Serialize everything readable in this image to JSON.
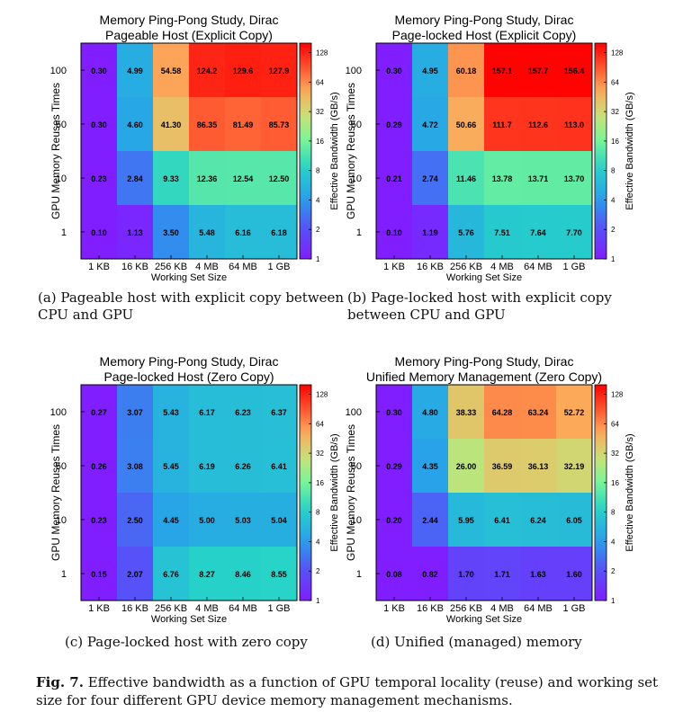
{
  "chart_data": [
    {
      "type": "heatmap",
      "title": "Memory Ping-Pong Study, Dirac",
      "subtitle": "Pageable Host (Explicit Copy)",
      "xlabel": "Working Set Size",
      "ylabel": "GPU Memory Reuses Times",
      "colorbar_label": "Effective Bandwidth (GB/s)",
      "x": [
        "1 KB",
        "16 KB",
        "256 KB",
        "4 MB",
        "64 MB",
        "1 GB"
      ],
      "y": [
        "100",
        "50",
        "10",
        "1"
      ],
      "values": [
        [
          "0.30",
          "4.99",
          "54.58",
          "124.2",
          "129.6",
          "127.9"
        ],
        [
          "0.30",
          "4.60",
          "41.30",
          "86.35",
          "81.49",
          "85.73"
        ],
        [
          "0.23",
          "2.84",
          "9.33",
          "12.36",
          "12.54",
          "12.50"
        ],
        [
          "0.10",
          "1.13",
          "3.50",
          "5.48",
          "6.16",
          "6.18"
        ]
      ],
      "colorbar_ticks": [
        "128",
        "64",
        "32",
        "16",
        "8",
        "4",
        "2",
        "1"
      ],
      "scale": "log2",
      "range": [
        1,
        160
      ],
      "caption": "(a) Pageable host with explicit copy between CPU and GPU"
    },
    {
      "type": "heatmap",
      "title": "Memory Ping-Pong Study, Dirac",
      "subtitle": "Page-locked Host (Explicit Copy)",
      "xlabel": "Working Set Size",
      "ylabel": "GPU Memory Reuses Times",
      "colorbar_label": "Effective Bandwidth (GB/s)",
      "x": [
        "1 KB",
        "16 KB",
        "256 KB",
        "4 MB",
        "64 MB",
        "1 GB"
      ],
      "y": [
        "100",
        "50",
        "10",
        "1"
      ],
      "values": [
        [
          "0.30",
          "4.95",
          "60.18",
          "157.1",
          "157.7",
          "156.4"
        ],
        [
          "0.29",
          "4.72",
          "50.66",
          "111.7",
          "112.6",
          "113.0"
        ],
        [
          "0.21",
          "2.74",
          "11.46",
          "13.78",
          "13.71",
          "13.70"
        ],
        [
          "0.10",
          "1.19",
          "5.76",
          "7.51",
          "7.64",
          "7.70"
        ]
      ],
      "colorbar_ticks": [
        "128",
        "64",
        "32",
        "16",
        "8",
        "4",
        "2",
        "1"
      ],
      "scale": "log2",
      "range": [
        1,
        160
      ],
      "caption": "(b) Page-locked host with explicit copy between CPU and GPU"
    },
    {
      "type": "heatmap",
      "title": "Memory Ping-Pong Study, Dirac",
      "subtitle": "Page-locked Host (Zero Copy)",
      "xlabel": "Working Set Size",
      "ylabel": "GPU Memory Reuses Times",
      "colorbar_label": "Effective Bandwidth (GB/s)",
      "x": [
        "1 KB",
        "16 KB",
        "256 KB",
        "4 MB",
        "64 MB",
        "1 GB"
      ],
      "y": [
        "100",
        "50",
        "10",
        "1"
      ],
      "values": [
        [
          "0.27",
          "3.07",
          "5.43",
          "6.17",
          "6.23",
          "6.37"
        ],
        [
          "0.26",
          "3.08",
          "5.45",
          "6.19",
          "6.26",
          "6.41"
        ],
        [
          "0.23",
          "2.50",
          "4.45",
          "5.00",
          "5.03",
          "5.04"
        ],
        [
          "0.15",
          "2.07",
          "6.76",
          "8.27",
          "8.46",
          "8.55"
        ]
      ],
      "colorbar_ticks": [
        "128",
        "64",
        "32",
        "16",
        "8",
        "4",
        "2",
        "1"
      ],
      "scale": "log2",
      "range": [
        1,
        160
      ],
      "caption": "(c) Page-locked host with zero copy"
    },
    {
      "type": "heatmap",
      "title": "Memory Ping-Pong Study, Dirac",
      "subtitle": "Unified Memory Management (Zero Copy)",
      "xlabel": "Working Set Size",
      "ylabel": "GPU Memory Reuses Times",
      "colorbar_label": "Effective Bandwidth (GB/s)",
      "x": [
        "1 KB",
        "16 KB",
        "256 KB",
        "4 MB",
        "64 MB",
        "1 GB"
      ],
      "y": [
        "100",
        "50",
        "10",
        "1"
      ],
      "values": [
        [
          "0.30",
          "4.80",
          "38.33",
          "64.28",
          "63.24",
          "52.72"
        ],
        [
          "0.29",
          "4.35",
          "26.00",
          "36.59",
          "36.13",
          "32.19"
        ],
        [
          "0.20",
          "2.44",
          "5.95",
          "6.41",
          "6.24",
          "6.05"
        ],
        [
          "0.08",
          "0.82",
          "1.70",
          "1.71",
          "1.63",
          "1.60"
        ]
      ],
      "colorbar_ticks": [
        "128",
        "64",
        "32",
        "16",
        "8",
        "4",
        "2",
        "1"
      ],
      "scale": "log2",
      "range": [
        1,
        160
      ],
      "caption": "(d) Unified (managed) memory"
    }
  ],
  "figure": {
    "label": "Fig. 7.",
    "caption": "Effective bandwidth as a function of GPU temporal locality (reuse) and working set size for four different GPU device memory management mechanisms."
  }
}
